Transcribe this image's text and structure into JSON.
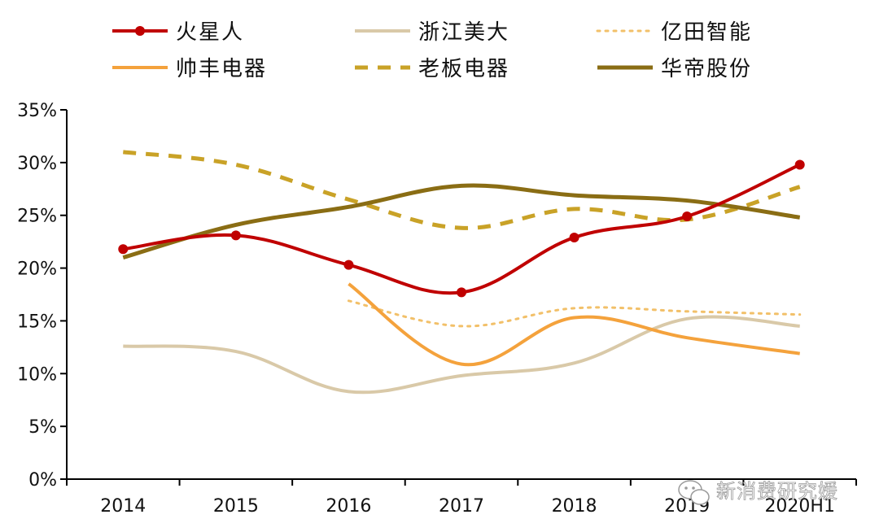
{
  "chart_data": {
    "type": "line",
    "title": "",
    "xlabel": "",
    "ylabel": "",
    "categories": [
      "2014",
      "2015",
      "2016",
      "2017",
      "2018",
      "2019",
      "2020H1"
    ],
    "ylim": [
      0,
      35
    ],
    "y_ticks": [
      0,
      5,
      10,
      15,
      20,
      25,
      30,
      35
    ],
    "y_tick_labels": [
      "0%",
      "5%",
      "10%",
      "15%",
      "20%",
      "25%",
      "30%",
      "35%"
    ],
    "grid": false,
    "legend_position": "top",
    "series": [
      {
        "name": "火星人",
        "color": "#c00000",
        "style": "solid-marker",
        "values": [
          21.8,
          23.1,
          20.3,
          17.7,
          22.9,
          24.9,
          29.8
        ]
      },
      {
        "name": "浙江美大",
        "color": "#d9c9a8",
        "style": "solid",
        "values": [
          12.6,
          12.1,
          8.3,
          9.8,
          11.0,
          15.2,
          14.5
        ]
      },
      {
        "name": "亿田智能",
        "color": "#f2c069",
        "style": "dotted",
        "values": [
          null,
          null,
          16.9,
          14.5,
          16.2,
          15.9,
          15.6
        ]
      },
      {
        "name": "帅丰电器",
        "color": "#f4a23c",
        "style": "solid",
        "values": [
          null,
          null,
          18.5,
          10.9,
          15.3,
          13.4,
          11.9
        ]
      },
      {
        "name": "老板电器",
        "color": "#c9a227",
        "style": "dashed",
        "values": [
          31.0,
          29.8,
          26.5,
          23.8,
          25.6,
          24.6,
          27.7
        ]
      },
      {
        "name": "华帝股份",
        "color": "#8a6d14",
        "style": "solid-thick",
        "values": [
          21.0,
          24.1,
          25.8,
          27.8,
          26.9,
          26.4,
          24.8
        ]
      }
    ]
  },
  "watermark": {
    "text": "新消费研究媛",
    "icon": "wechat-icon"
  }
}
